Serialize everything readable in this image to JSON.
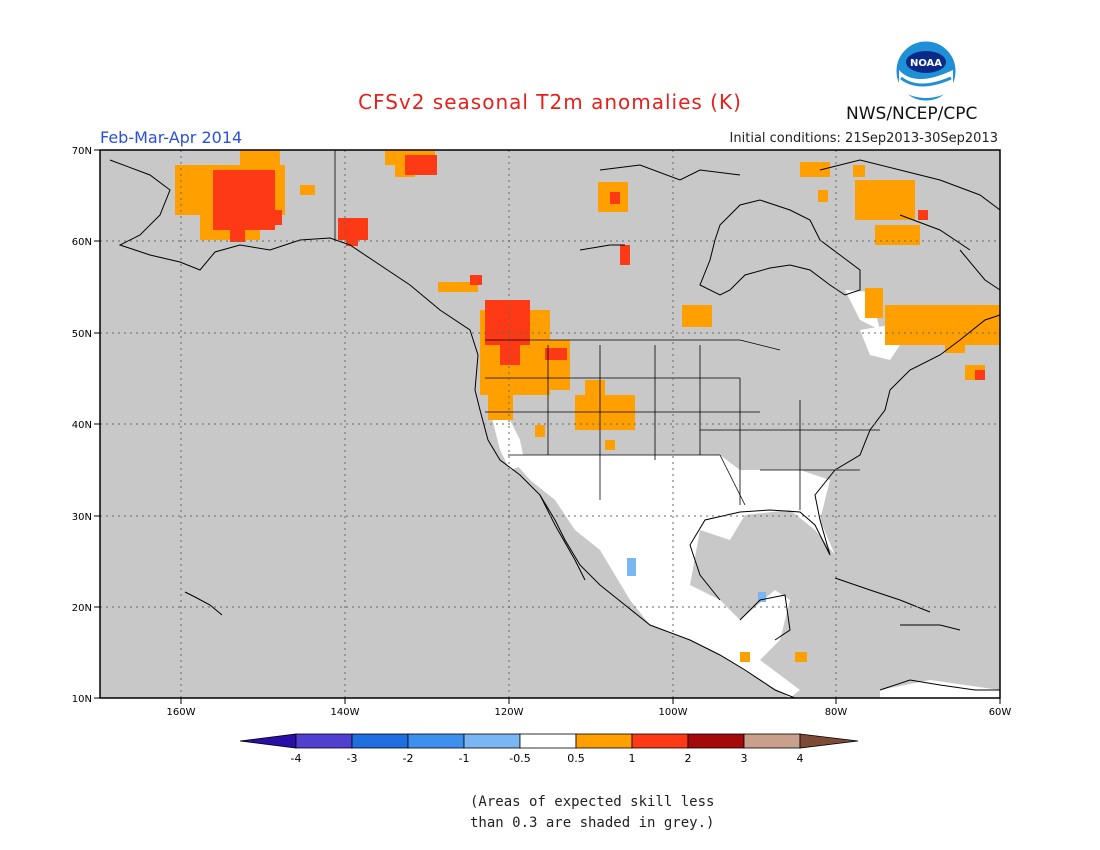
{
  "title": "CFSv2 seasonal T2m anomalies (K)",
  "season": "Feb-Mar-Apr 2014",
  "initial_conditions": "Initial conditions: 21Sep2013-30Sep2013",
  "agency": "NWS/NCEP/CPC",
  "logo_text": "NOAA",
  "lat_labels": [
    "70N",
    "60N",
    "50N",
    "40N",
    "30N",
    "20N",
    "10N"
  ],
  "lon_labels": [
    "160W",
    "140W",
    "120W",
    "100W",
    "80W",
    "60W"
  ],
  "colorbar": {
    "labels": [
      "-4",
      "-3",
      "-2",
      "-1",
      "-0.5",
      "0.5",
      "1",
      "2",
      "3",
      "4"
    ],
    "colors": [
      "#2a0ea8",
      "#5040d0",
      "#1f6fe0",
      "#3e90ee",
      "#7ab7f2",
      "#ffffff",
      "#ffa000",
      "#fe3a16",
      "#a40a0a",
      "#c8a08c",
      "#7d4a35"
    ]
  },
  "skill_note": [
    "(Areas of expected skill less",
    "than 0.3 are shaded in grey.)"
  ],
  "colors": {
    "land_ocean_grey": "#c8c8c8",
    "white": "#ffffff",
    "orange": "#ffa000",
    "red": "#fe3a16",
    "light_blue": "#7ab7f2"
  }
}
